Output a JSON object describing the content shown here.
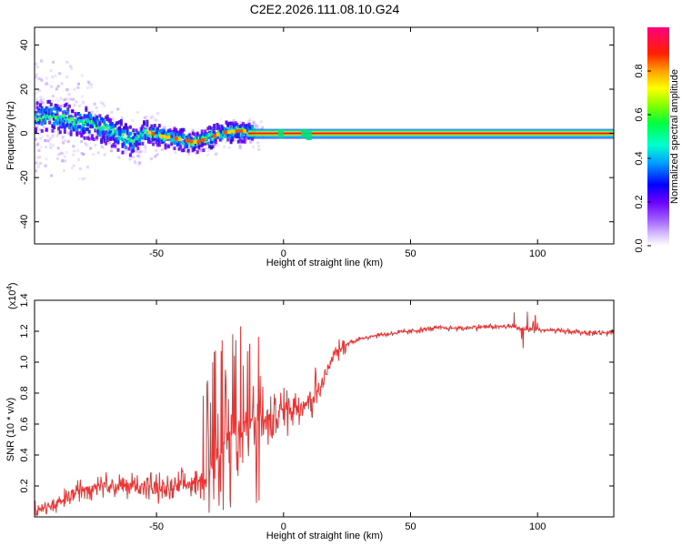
{
  "figure": {
    "title": "C2E2.2026.111.08.10.G24"
  },
  "chart_data": [
    {
      "type": "heatmap",
      "name": "spectrogram",
      "xlabel": "Height of straight line (km)",
      "ylabel": "Frequency (Hz)",
      "xlim": [
        -98,
        130
      ],
      "ylim": [
        -50,
        48
      ],
      "xticks": [
        -50,
        0,
        50,
        100
      ],
      "yticks": [
        -40,
        -20,
        0,
        20,
        40
      ],
      "colorbar": {
        "label": "Normalized spectral amplitude",
        "range": [
          0,
          1
        ],
        "ticks": [
          0.0,
          0.2,
          0.4,
          0.6,
          0.8
        ]
      },
      "ridge": {
        "x": [
          -98,
          -90,
          -85,
          -80,
          -75,
          -70,
          -65,
          -60,
          -55,
          -50,
          -45,
          -40,
          -35,
          -30,
          -25,
          -20,
          -15,
          -10,
          0,
          10,
          50,
          100,
          130
        ],
        "freq": [
          7,
          8,
          6,
          5,
          4,
          2,
          -1,
          -4,
          1,
          -1,
          -2,
          -3,
          -4,
          -2,
          0,
          1,
          1,
          0,
          0,
          0,
          0,
          0,
          0
        ]
      }
    },
    {
      "type": "line",
      "name": "snr",
      "xlabel": "Height of straight line (km)",
      "ylabel": "SNR (10 * v/v)",
      "scale_label": "(x10",
      "scale_exp": "4",
      "scale_close": ")",
      "xlim": [
        -98,
        130
      ],
      "ylim": [
        0,
        1.4
      ],
      "xticks": [
        -50,
        0,
        50,
        100
      ],
      "yticks": [
        0.2,
        0.4,
        0.6,
        0.8,
        1.0,
        1.2,
        1.4
      ],
      "color": "#ee3333",
      "series": {
        "x": [
          -98,
          -90,
          -85,
          -80,
          -75,
          -70,
          -65,
          -60,
          -55,
          -50,
          -45,
          -40,
          -35,
          -30,
          -28,
          -25,
          -22,
          -20,
          -18,
          -15,
          -12,
          -10,
          -8,
          -5,
          0,
          5,
          10,
          15,
          20,
          25,
          30,
          35,
          40,
          50,
          60,
          70,
          80,
          90,
          95,
          100,
          110,
          120,
          130
        ],
        "y": [
          0.05,
          0.07,
          0.12,
          0.18,
          0.2,
          0.22,
          0.19,
          0.2,
          0.21,
          0.18,
          0.17,
          0.2,
          0.22,
          0.24,
          0.35,
          0.45,
          0.5,
          0.55,
          0.5,
          0.6,
          0.62,
          0.65,
          0.6,
          0.62,
          0.7,
          0.72,
          0.75,
          0.85,
          1.05,
          1.12,
          1.15,
          1.17,
          1.18,
          1.2,
          1.22,
          1.22,
          1.23,
          1.23,
          1.21,
          1.21,
          1.2,
          1.19,
          1.19
        ]
      }
    }
  ]
}
